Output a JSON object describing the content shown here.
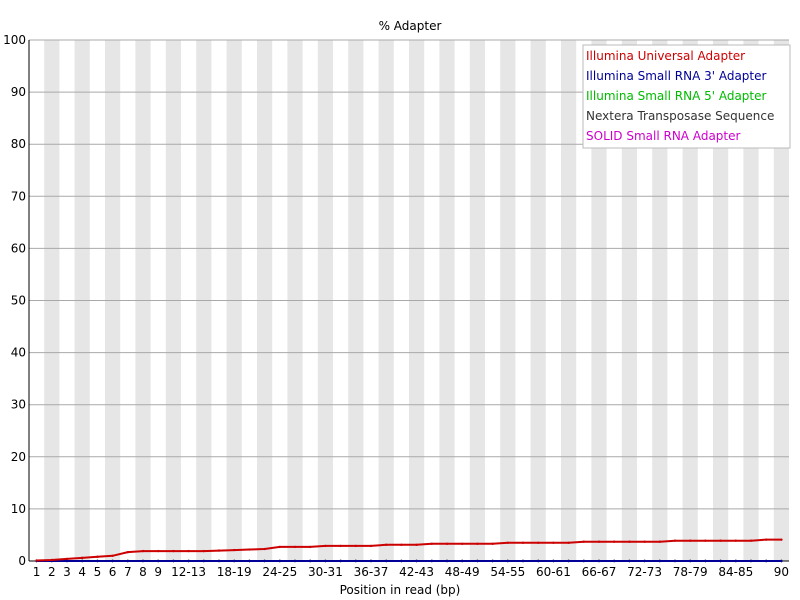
{
  "chart_data": {
    "type": "line",
    "title": "% Adapter",
    "xlabel": "Position in read (bp)",
    "ylabel": "",
    "ylim": [
      0,
      100
    ],
    "y_ticks": [
      "0",
      "10",
      "20",
      "30",
      "40",
      "50",
      "60",
      "70",
      "80",
      "90",
      "100"
    ],
    "grid": true,
    "legend_position": "top-right",
    "categories": [
      "1",
      "2",
      "3",
      "4",
      "5",
      "6",
      "7",
      "8",
      "9",
      "10-11",
      "12-13",
      "14-15",
      "16-17",
      "18-19",
      "20-21",
      "22-23",
      "24-25",
      "26-27",
      "28-29",
      "30-31",
      "32-33",
      "34-35",
      "36-37",
      "38-39",
      "40-41",
      "42-43",
      "44-45",
      "46-47",
      "48-49",
      "50-51",
      "52-53",
      "54-55",
      "56-57",
      "58-59",
      "60-61",
      "62-63",
      "64-65",
      "66-67",
      "68-69",
      "70-71",
      "72-73",
      "74-75",
      "76-77",
      "78-79",
      "80-81",
      "82-83",
      "84-85",
      "86-87",
      "88-89",
      "90"
    ],
    "tick_labels": [
      "1",
      "2",
      "3",
      "4",
      "5",
      "6",
      "7",
      "8",
      "9",
      "12-13",
      "18-19",
      "24-25",
      "30-31",
      "36-37",
      "42-43",
      "48-49",
      "54-55",
      "60-61",
      "66-67",
      "72-73",
      "78-79",
      "84-85",
      "90"
    ],
    "series": [
      {
        "name": "Illumina Universal Adapter",
        "color": "#cc0000",
        "values": [
          0.1,
          0.2,
          0.4,
          0.6,
          0.8,
          1.0,
          1.7,
          1.9,
          1.9,
          1.9,
          1.9,
          1.9,
          2.0,
          2.1,
          2.2,
          2.3,
          2.7,
          2.7,
          2.7,
          2.9,
          2.9,
          2.9,
          2.9,
          3.1,
          3.1,
          3.1,
          3.3,
          3.3,
          3.3,
          3.3,
          3.3,
          3.5,
          3.5,
          3.5,
          3.5,
          3.5,
          3.7,
          3.7,
          3.7,
          3.7,
          3.7,
          3.7,
          3.9,
          3.9,
          3.9,
          3.9,
          3.9,
          3.9,
          4.1,
          4.1
        ]
      },
      {
        "name": "Illumina Small RNA 3' Adapter",
        "color": "#000099",
        "values": [
          0,
          0,
          0,
          0,
          0,
          0,
          0,
          0,
          0,
          0,
          0,
          0,
          0,
          0,
          0,
          0,
          0,
          0,
          0,
          0,
          0,
          0,
          0,
          0,
          0,
          0,
          0,
          0,
          0,
          0,
          0,
          0,
          0,
          0,
          0,
          0,
          0,
          0,
          0,
          0,
          0,
          0,
          0,
          0,
          0,
          0,
          0,
          0,
          0,
          0
        ]
      },
      {
        "name": "Illumina Small RNA 5' Adapter",
        "color": "#00bb00",
        "values": [
          0,
          0,
          0,
          0,
          0,
          0,
          0,
          0,
          0,
          0,
          0,
          0,
          0,
          0,
          0,
          0,
          0,
          0,
          0,
          0,
          0,
          0,
          0,
          0,
          0,
          0,
          0,
          0,
          0,
          0,
          0,
          0,
          0,
          0,
          0,
          0,
          0,
          0,
          0,
          0,
          0,
          0,
          0,
          0,
          0,
          0,
          0,
          0,
          0,
          0
        ]
      },
      {
        "name": "Nextera Transposase Sequence",
        "color": "#333333",
        "values": [
          0,
          0,
          0,
          0,
          0,
          0,
          0,
          0,
          0,
          0,
          0,
          0,
          0,
          0,
          0,
          0,
          0,
          0,
          0,
          0,
          0,
          0,
          0,
          0,
          0,
          0,
          0,
          0,
          0,
          0,
          0,
          0,
          0,
          0,
          0,
          0,
          0,
          0,
          0,
          0,
          0,
          0,
          0,
          0,
          0,
          0,
          0,
          0,
          0,
          0
        ]
      },
      {
        "name": "SOLID Small RNA Adapter",
        "color": "#cc00cc",
        "values": [
          0,
          0,
          0,
          0,
          0,
          0,
          0,
          0,
          0,
          0,
          0,
          0,
          0,
          0,
          0,
          0,
          0,
          0,
          0,
          0,
          0,
          0,
          0,
          0,
          0,
          0,
          0,
          0,
          0,
          0,
          0,
          0,
          0,
          0,
          0,
          0,
          0,
          0,
          0,
          0,
          0,
          0,
          0,
          0,
          0,
          0,
          0,
          0,
          0,
          0
        ]
      }
    ]
  }
}
